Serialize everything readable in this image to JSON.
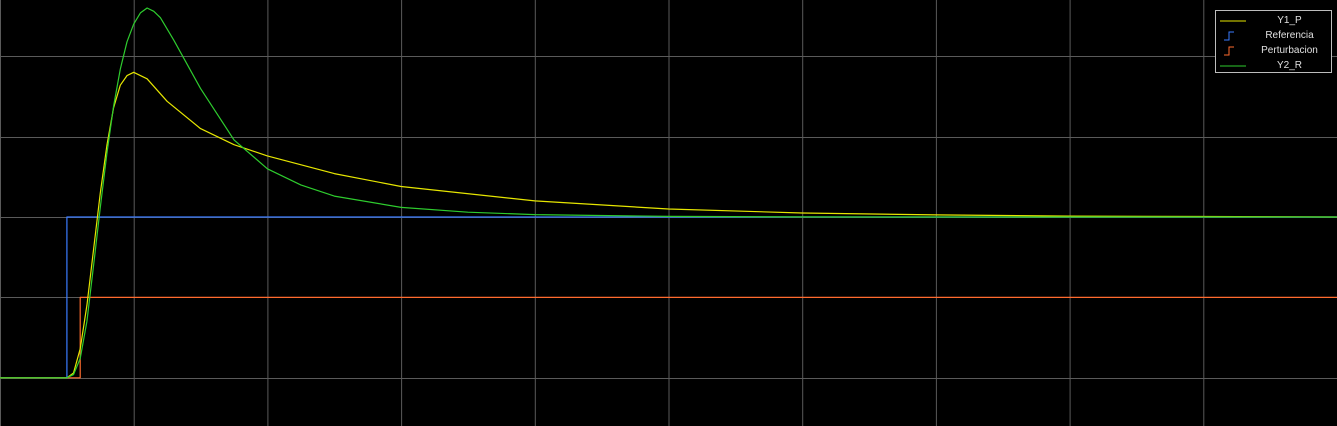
{
  "chart_data": {
    "type": "line",
    "title": "",
    "xlabel": "",
    "ylabel": "",
    "xlim": [
      0,
      20
    ],
    "ylim": [
      -0.3,
      2.35
    ],
    "grid": true,
    "legend_position": "top-right",
    "background": "#000000",
    "grid_color": "#5a5a5a",
    "series": [
      {
        "name": "Y1_P",
        "color": "#e6e600",
        "x": [
          0,
          1.0,
          1.1,
          1.2,
          1.3,
          1.4,
          1.5,
          1.6,
          1.7,
          1.8,
          1.9,
          2.0,
          2.2,
          2.5,
          3.0,
          3.5,
          4.0,
          5.0,
          6.0,
          8.0,
          10.0,
          12.0,
          14.0,
          16.0,
          18.0,
          20.0
        ],
        "y": [
          0,
          0,
          0.03,
          0.18,
          0.45,
          0.8,
          1.15,
          1.45,
          1.68,
          1.82,
          1.88,
          1.9,
          1.86,
          1.72,
          1.55,
          1.45,
          1.38,
          1.27,
          1.19,
          1.1,
          1.05,
          1.025,
          1.013,
          1.006,
          1.003,
          1.0
        ]
      },
      {
        "name": "Referencia",
        "color": "#3a7bff",
        "x": [
          0,
          1.0,
          1.0,
          20.0
        ],
        "y": [
          0,
          0,
          1.0,
          1.0
        ]
      },
      {
        "name": "Perturbacion",
        "color": "#ff6b2e",
        "x": [
          0,
          1.2,
          1.2,
          20.0
        ],
        "y": [
          0,
          0,
          0.5,
          0.5
        ]
      },
      {
        "name": "Y2_R",
        "color": "#2ecc2e",
        "x": [
          0,
          1.0,
          1.1,
          1.2,
          1.3,
          1.4,
          1.5,
          1.6,
          1.7,
          1.8,
          1.9,
          2.0,
          2.1,
          2.2,
          2.3,
          2.4,
          2.6,
          3.0,
          3.5,
          4.0,
          4.5,
          5.0,
          6.0,
          7.0,
          8.0,
          10.0,
          12.0,
          14.0,
          20.0
        ],
        "y": [
          0,
          0,
          0.02,
          0.12,
          0.35,
          0.7,
          1.06,
          1.4,
          1.69,
          1.92,
          2.09,
          2.2,
          2.27,
          2.3,
          2.28,
          2.24,
          2.1,
          1.8,
          1.48,
          1.3,
          1.2,
          1.13,
          1.06,
          1.03,
          1.015,
          1.004,
          1.001,
          1.0,
          1.0
        ]
      }
    ],
    "legend": [
      {
        "label": "Y1_P",
        "marker": "line",
        "color": "#e6e600"
      },
      {
        "label": "Referencia",
        "marker": "step",
        "color": "#3a7bff"
      },
      {
        "label": "Perturbacion",
        "marker": "step",
        "color": "#ff6b2e"
      },
      {
        "label": "Y2_R",
        "marker": "line",
        "color": "#2ecc2e"
      }
    ]
  }
}
